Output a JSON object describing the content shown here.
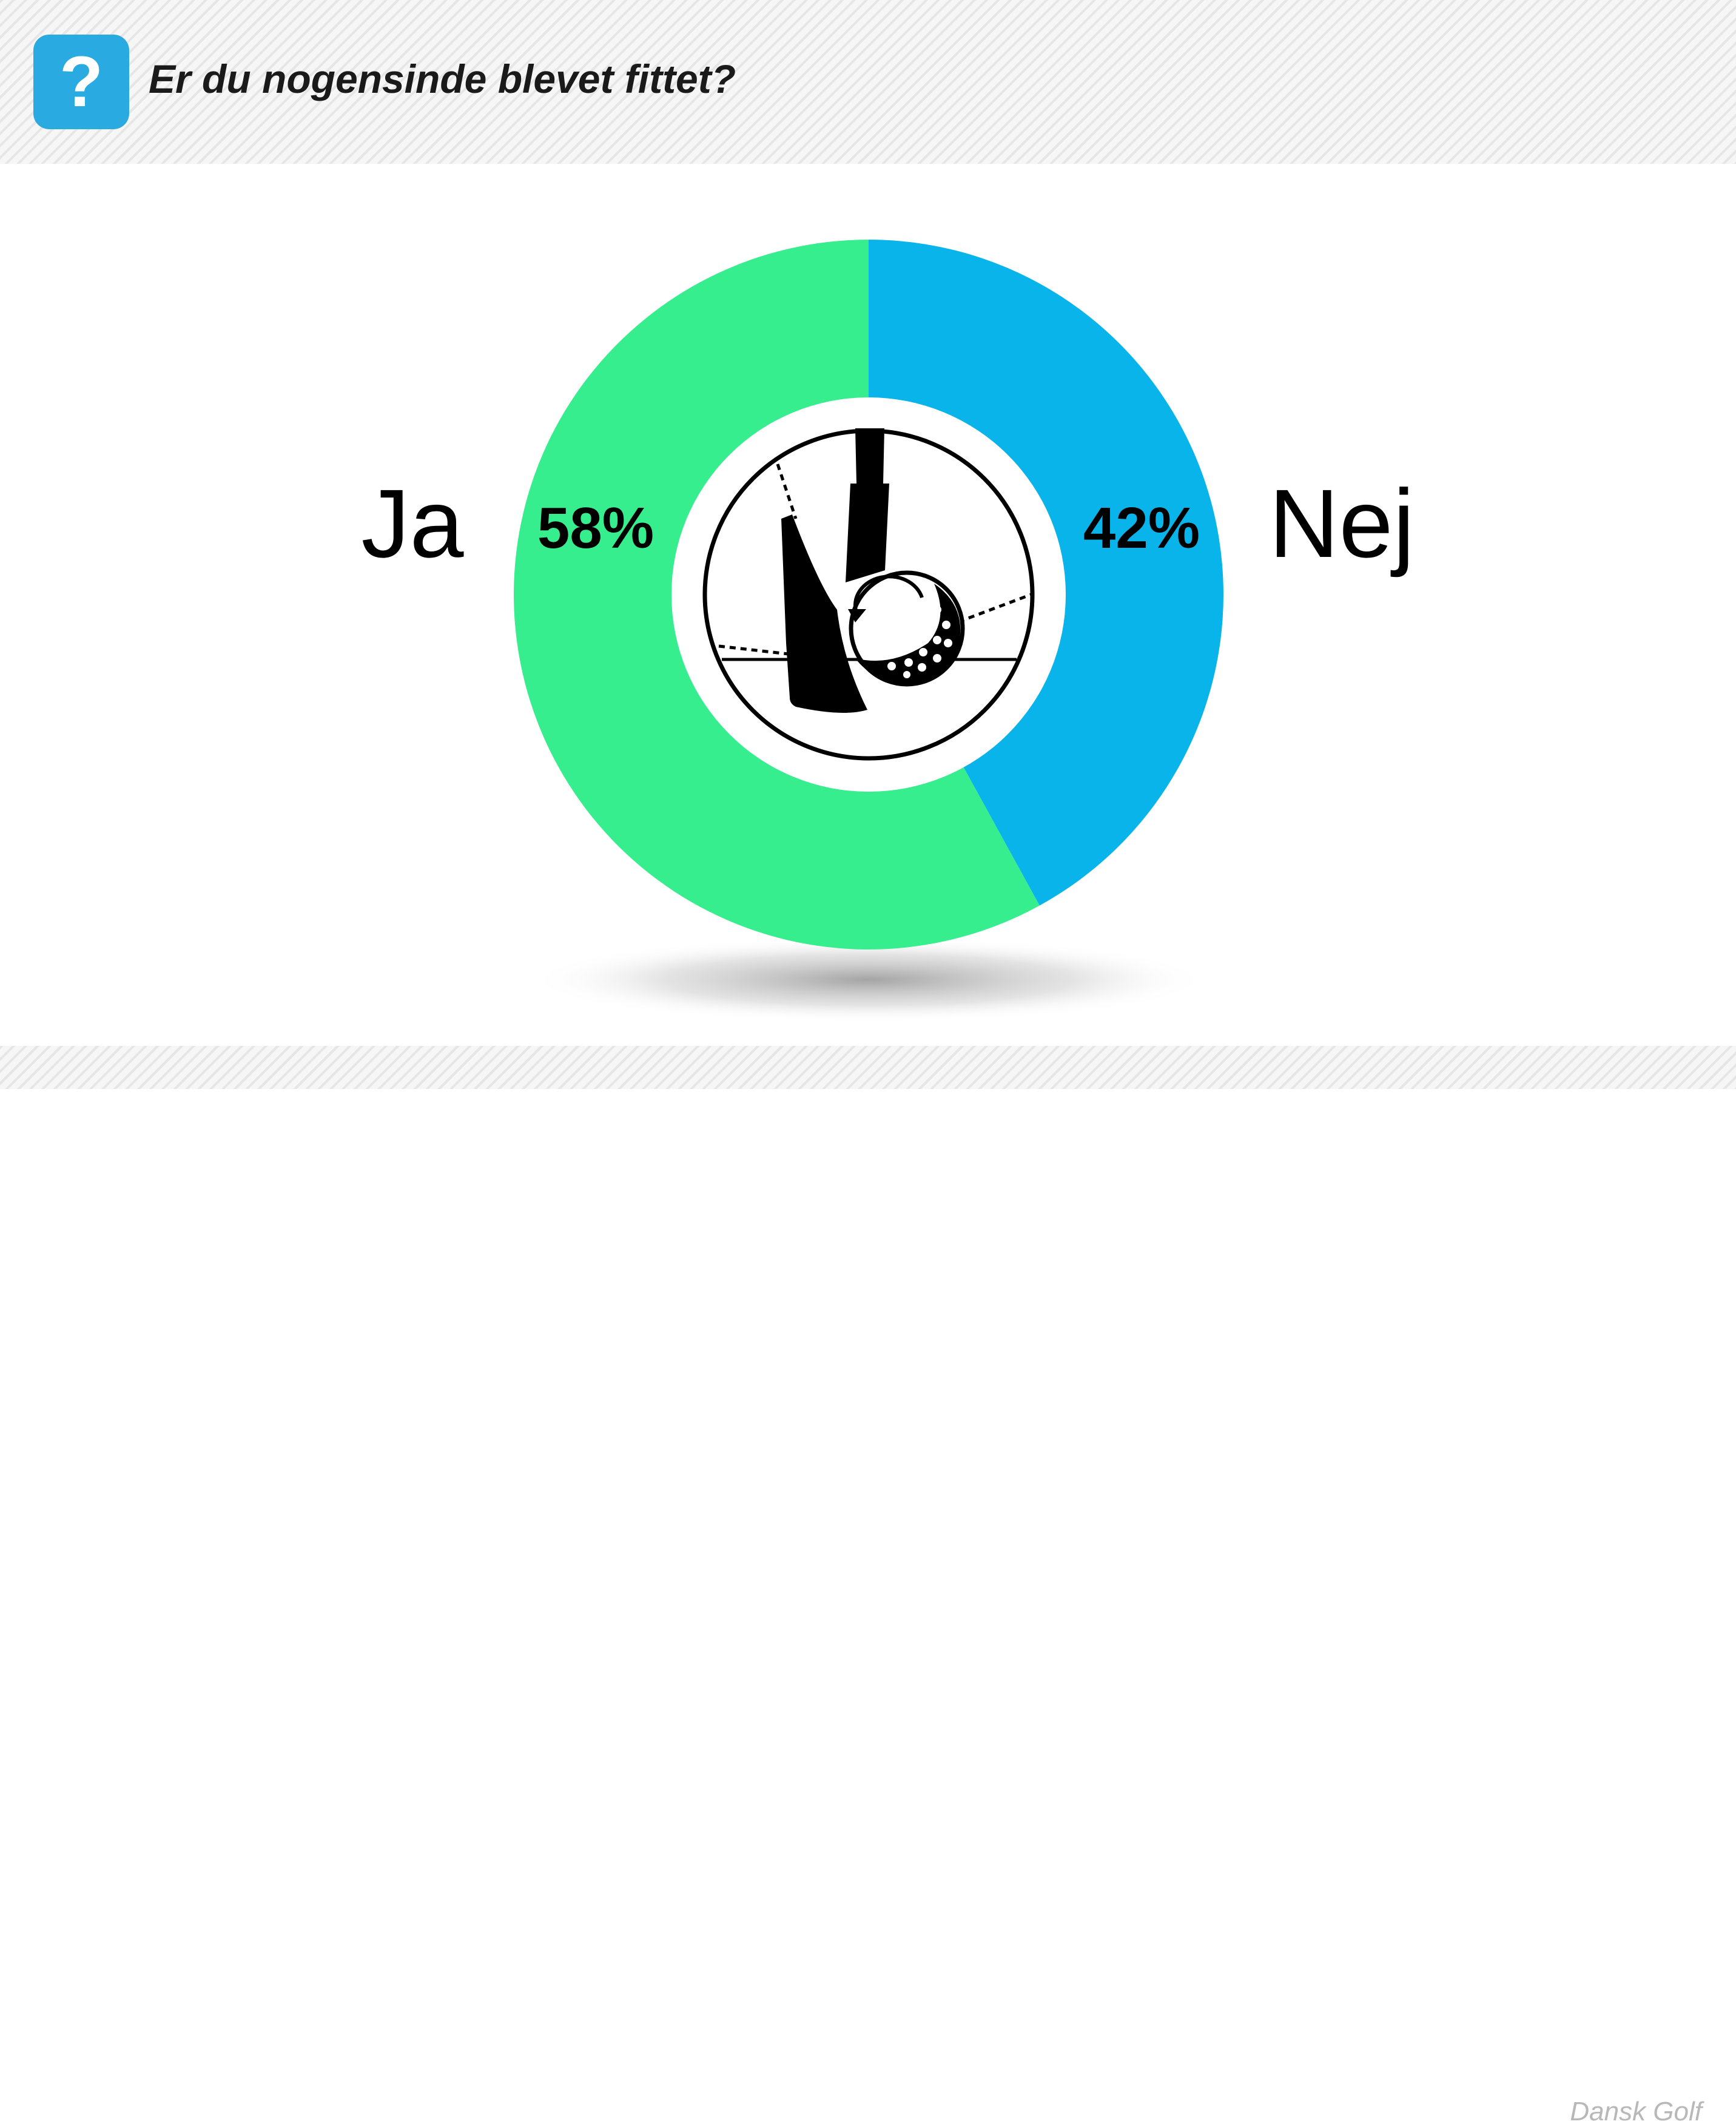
{
  "header": {
    "question": "Er du nogensinde blevet fittet?",
    "badge_symbol": "?"
  },
  "footer": {
    "brand": "Dansk Golf"
  },
  "colors": {
    "ja": "#37ee8f",
    "nej": "#08b4ea",
    "badge": "#29abe2"
  },
  "center_icon": "golf-club-and-ball-icon",
  "chart_data": {
    "type": "pie",
    "variant": "donut",
    "title": "Er du nogensinde blevet fittet?",
    "categories": [
      "Ja",
      "Nej"
    ],
    "values": [
      58,
      42
    ],
    "value_labels": [
      "58%",
      "42%"
    ],
    "unit": "%",
    "legend": "none"
  }
}
